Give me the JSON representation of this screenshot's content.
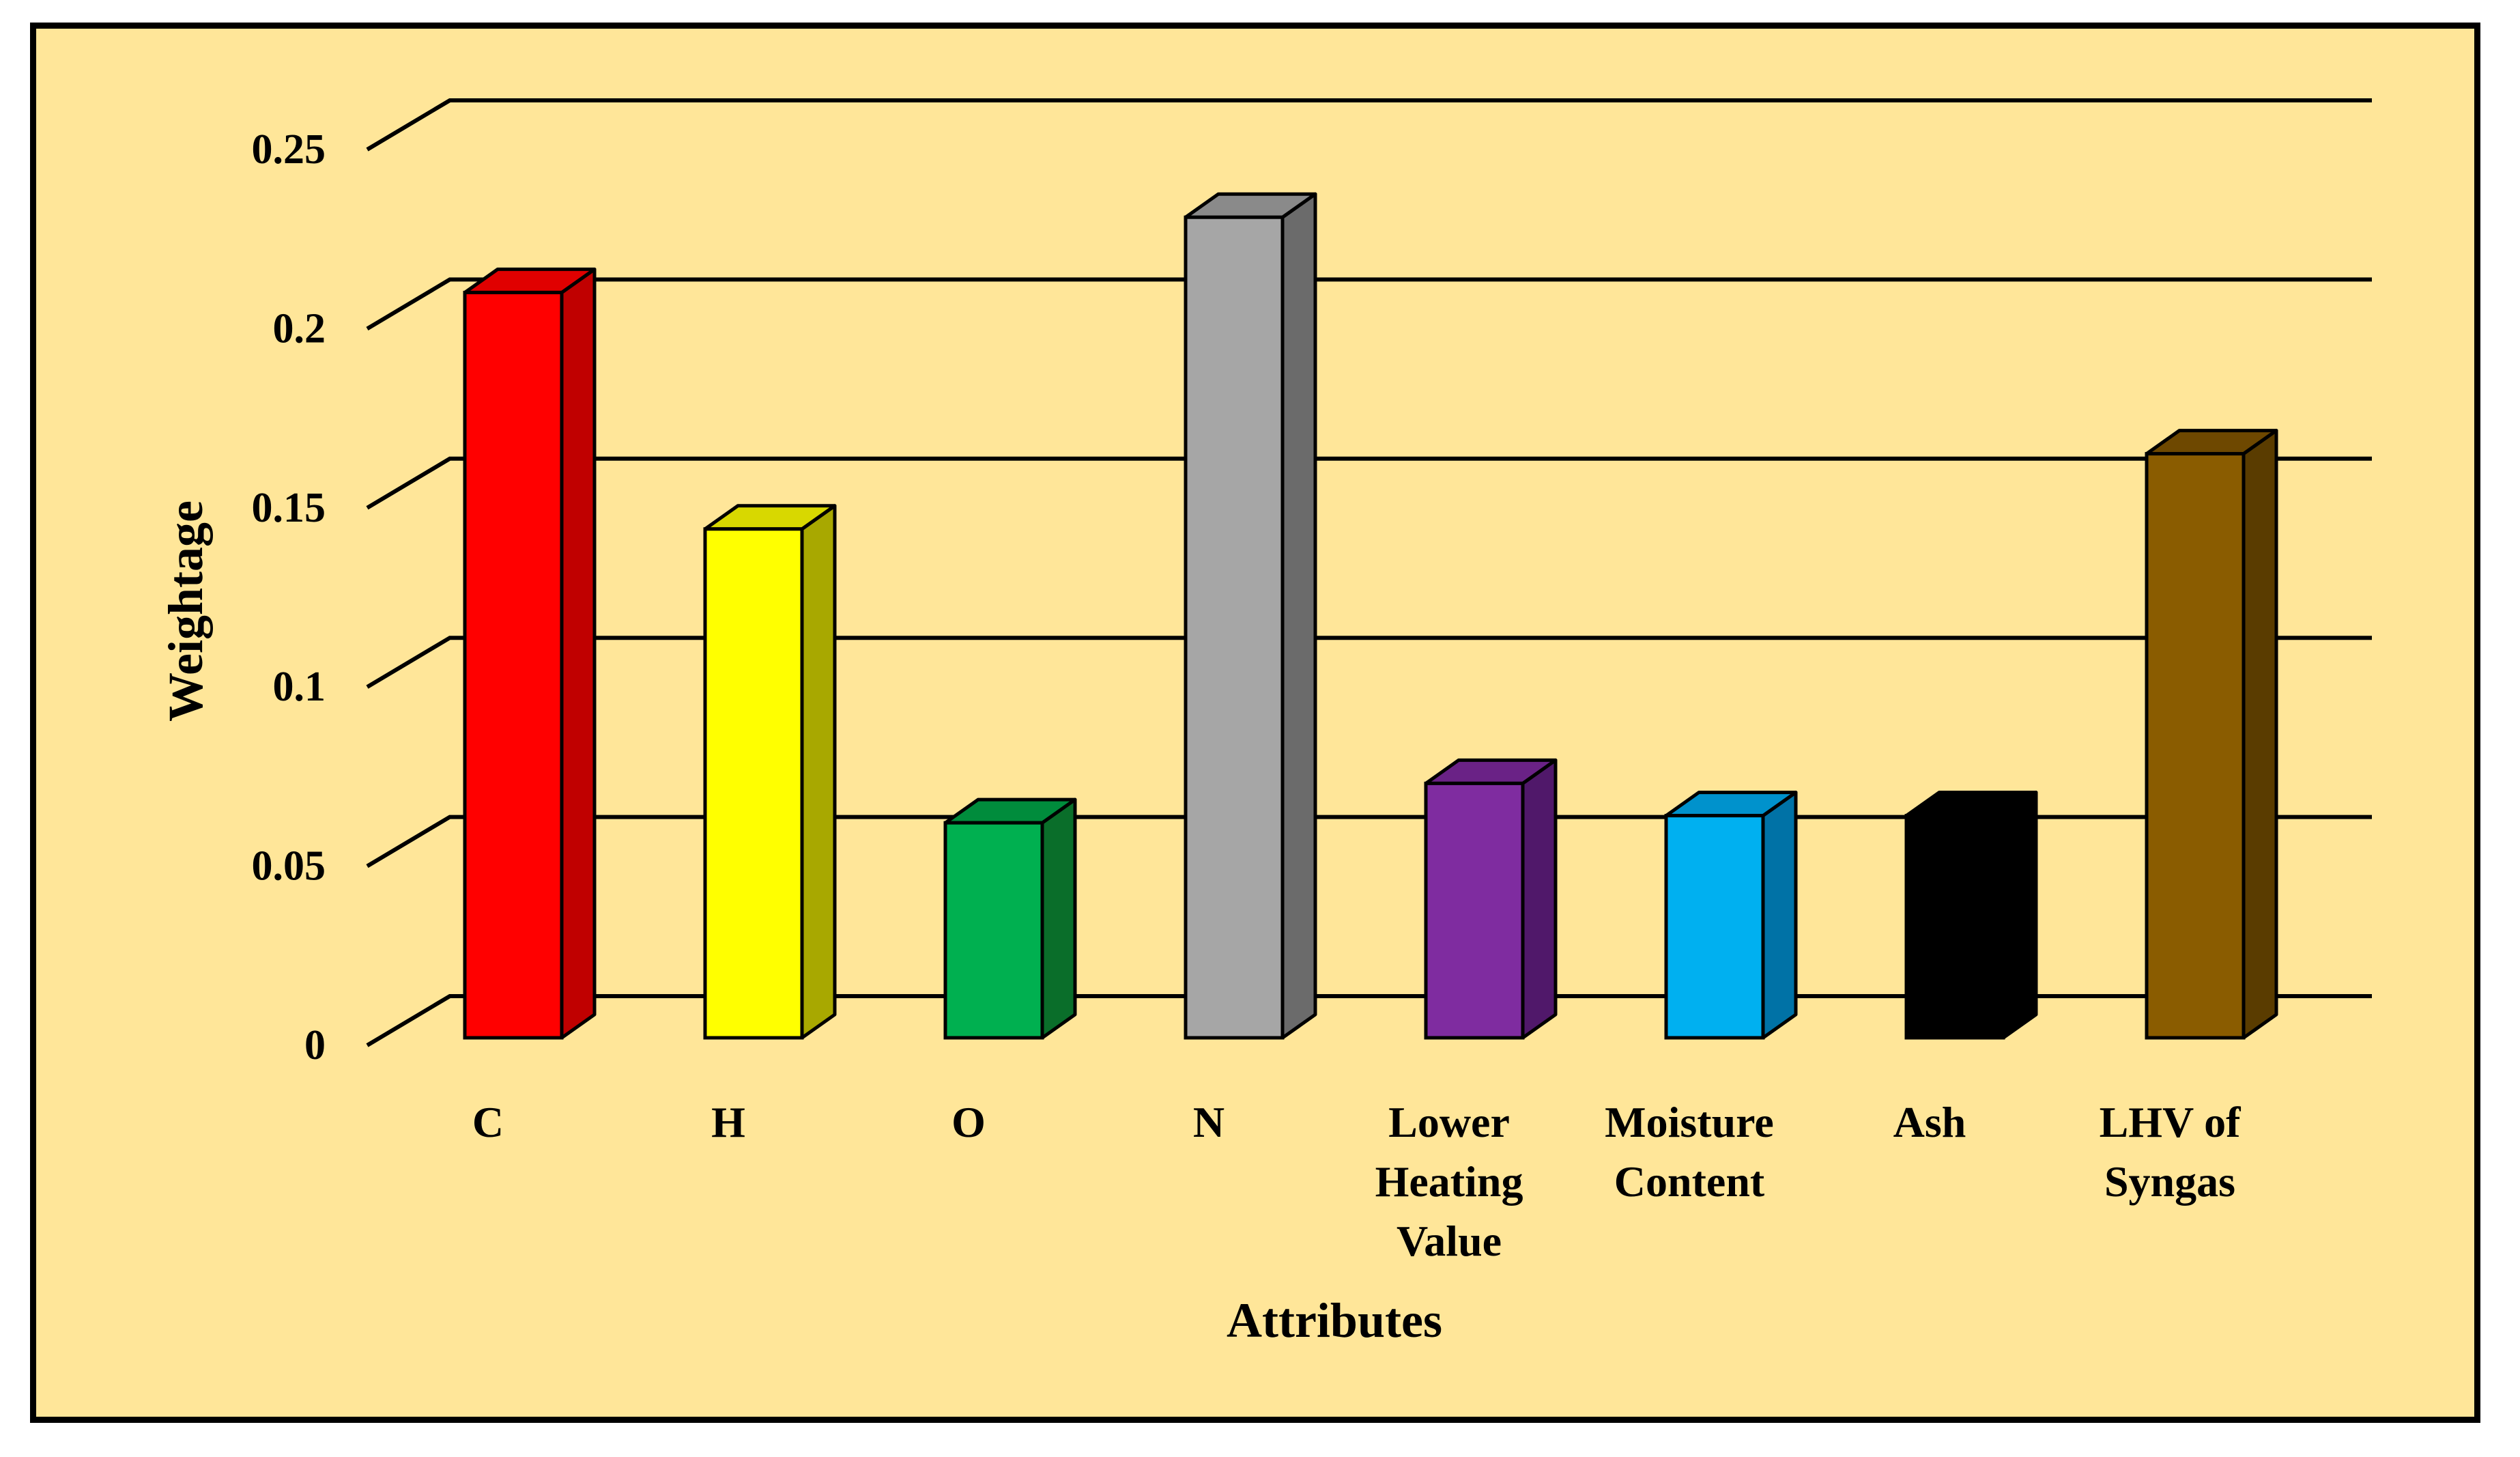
{
  "chart_data": {
    "type": "bar",
    "title": "",
    "xlabel": "Attributes",
    "ylabel": "Weightage",
    "ylim": [
      0,
      0.25
    ],
    "yticks": [
      "0",
      "0.05",
      "0.1",
      "0.15",
      "0.2",
      "0.25"
    ],
    "grid": true,
    "categories": [
      [
        "C"
      ],
      [
        "H"
      ],
      [
        "O"
      ],
      [
        "N"
      ],
      [
        "Lower",
        "Heating",
        "Value"
      ],
      [
        "Moisture",
        "Content"
      ],
      [
        "Ash"
      ],
      [
        "LHV of",
        "Syngas"
      ]
    ],
    "values": [
      0.208,
      0.142,
      0.06,
      0.229,
      0.071,
      0.062,
      0.062,
      0.163
    ],
    "colors": [
      {
        "front": "#ff0000",
        "side": "#c00000",
        "top": "#e00000"
      },
      {
        "front": "#ffff00",
        "side": "#a8a800",
        "top": "#d8d800"
      },
      {
        "front": "#00b050",
        "side": "#0a6e2a",
        "top": "#008c3c"
      },
      {
        "front": "#a6a6a6",
        "side": "#6b6b6b",
        "top": "#8a8a8a"
      },
      {
        "front": "#7f2ca0",
        "side": "#50186a",
        "top": "#6a2286"
      },
      {
        "front": "#00b0f0",
        "side": "#0072a6",
        "top": "#0092cc"
      },
      {
        "front": "#000000",
        "side": "#000000",
        "top": "#000000"
      },
      {
        "front": "#8a5c00",
        "side": "#5a3c00",
        "top": "#6e4800"
      }
    ],
    "background": "#ffe699"
  }
}
